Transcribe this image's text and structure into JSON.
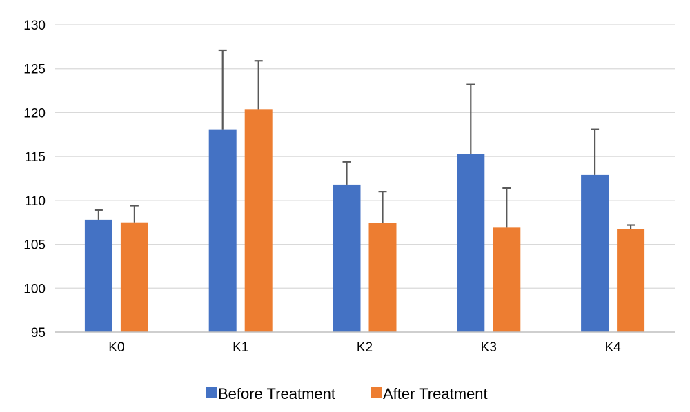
{
  "chart_data": {
    "type": "bar",
    "categories": [
      "K0",
      "K1",
      "K2",
      "K3",
      "K4"
    ],
    "series": [
      {
        "name": "Before Treatment",
        "color": "#4472C4",
        "values": [
          107.8,
          118.1,
          111.8,
          115.3,
          112.9
        ],
        "error_upper": [
          108.9,
          127.1,
          114.4,
          123.2,
          118.1
        ]
      },
      {
        "name": "After Treatment",
        "color": "#ED7D31",
        "values": [
          107.5,
          120.4,
          107.4,
          106.9,
          106.7
        ],
        "error_upper": [
          109.4,
          125.9,
          111.0,
          111.4,
          107.2
        ]
      }
    ],
    "ylim": [
      95,
      130
    ],
    "yticks": [
      95,
      100,
      105,
      110,
      115,
      120,
      125,
      130
    ],
    "grid": true,
    "legend_position": "bottom",
    "title": "",
    "xlabel": "",
    "ylabel": ""
  }
}
